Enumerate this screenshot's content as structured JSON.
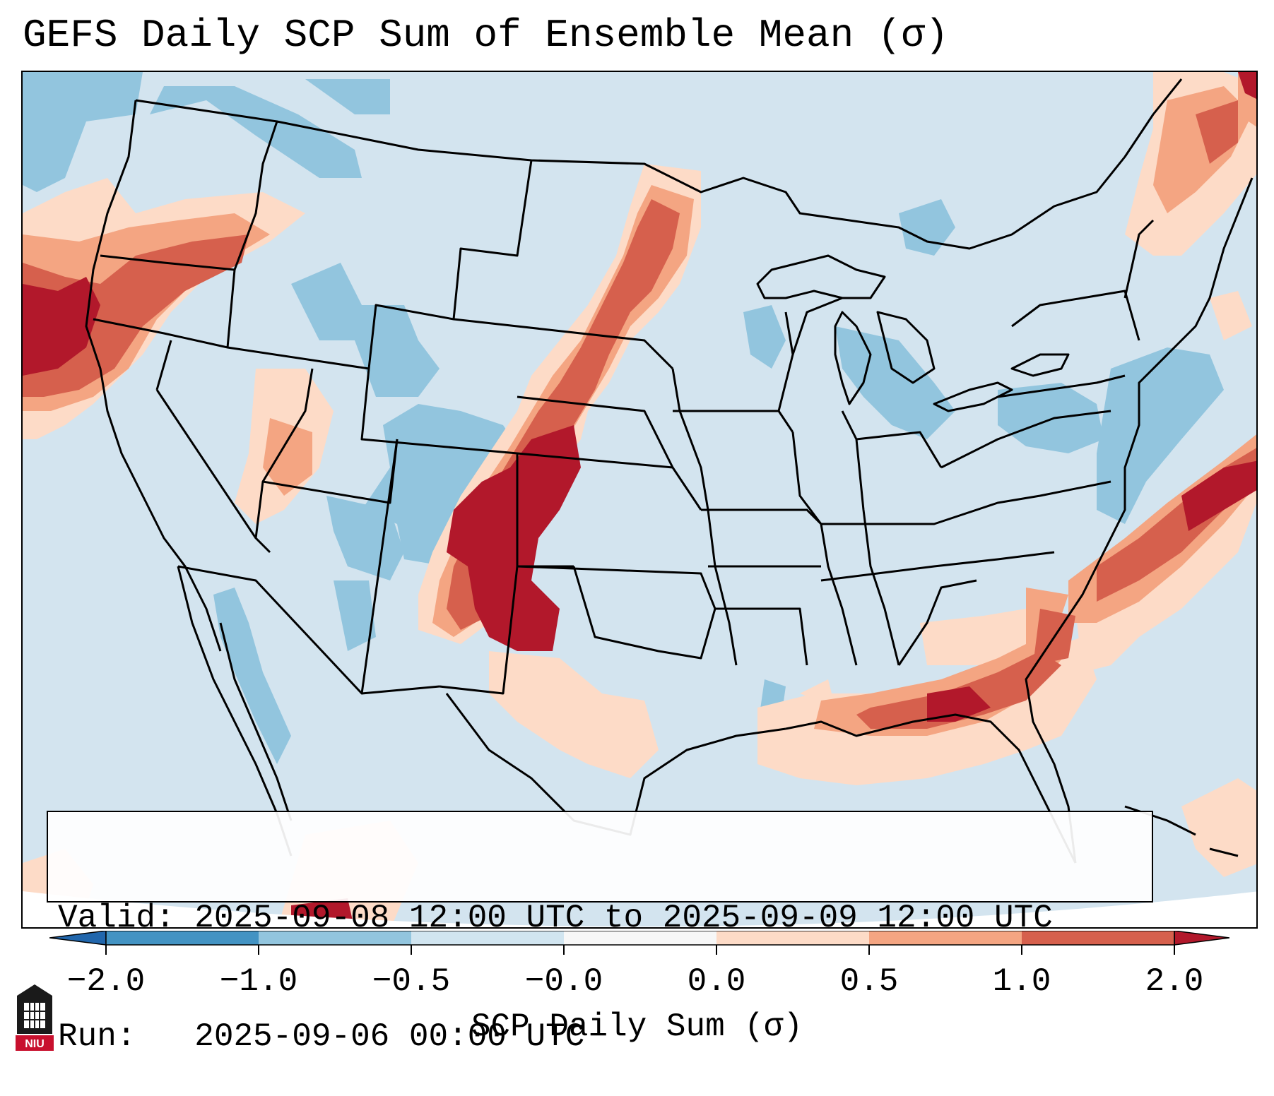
{
  "title": "GEFS Daily SCP Sum of Ensemble Mean (σ)",
  "info": {
    "valid_line": "Valid: 2025-09-08 12:00 UTC to 2025-09-09 12:00 UTC",
    "run_line": "Run:   2025-09-06 00:00 UTC"
  },
  "colorbar": {
    "label": "SCP Daily Sum (σ)",
    "ticks": [
      "−2.0",
      "−1.0",
      "−0.5",
      "−0.0",
      "0.0",
      "0.5",
      "1.0",
      "2.0"
    ],
    "bins": [
      {
        "range": "< -2.0",
        "color": "#2166ac"
      },
      {
        "range": "-2.0 to -1.0",
        "color": "#4393c3"
      },
      {
        "range": "-1.0 to -0.5",
        "color": "#92c5de"
      },
      {
        "range": "-0.5 to -0.0",
        "color": "#d1e5f0"
      },
      {
        "range": "-0.0 to 0.0",
        "color": "#f7f7f7"
      },
      {
        "range": "0.0 to 0.5",
        "color": "#fddbc7"
      },
      {
        "range": "0.5 to 1.0",
        "color": "#f4a582"
      },
      {
        "range": "1.0 to 2.0",
        "color": "#d6604d"
      },
      {
        "range": "> 2.0",
        "color": "#b2182b"
      }
    ]
  },
  "map": {
    "background_color": "#d3e4ef",
    "region": "Continental United States"
  },
  "logo": {
    "text": "NIU",
    "color": "#c8102e"
  }
}
